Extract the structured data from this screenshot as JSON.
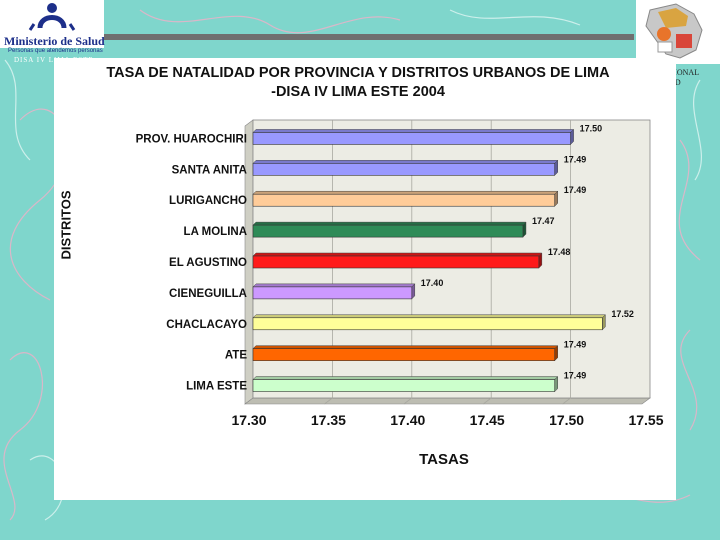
{
  "header": {
    "ministry": "Ministerio de Salud",
    "ministry_tagline": "Personas que atendemos personas",
    "disa": "DISA IV LIMA ESTE",
    "sala": "SALA SITUACIONAL DE SALUD"
  },
  "colors": {
    "background": "#7fd6cc",
    "plot_area": "#ecece4",
    "ministry_blue": "#1d2f8a"
  },
  "chart_data": {
    "type": "bar",
    "orientation": "horizontal",
    "title": "TASA DE NATALIDAD POR PROVINCIA Y DISTRITOS URBANOS DE LIMA -DISA IV LIMA ESTE 2004",
    "xlabel": "TASAS",
    "ylabel": "DISTRITOS",
    "xlim": [
      17.3,
      17.55
    ],
    "xticks": [
      "17.30",
      "17.35",
      "17.40",
      "17.45",
      "17.50",
      "17.55"
    ],
    "grid": true,
    "legend": "none",
    "categories": [
      "PROV. HUAROCHIRI",
      "SANTA ANITA",
      "LURIGANCHO",
      "LA MOLINA",
      "EL AGUSTINO",
      "CIENEGUILLA",
      "CHACLACAYO",
      "ATE",
      "LIMA ESTE"
    ],
    "values": [
      17.5,
      17.49,
      17.49,
      17.47,
      17.48,
      17.4,
      17.52,
      17.49,
      17.49
    ],
    "value_labels": [
      "17.50",
      "17.49",
      "17.49",
      "17.47",
      "17.48",
      "17.40",
      "17.52",
      "17.49",
      "17.49"
    ],
    "bar_colors": [
      "#9999ff",
      "#9999ff",
      "#ffcc99",
      "#2e8b57",
      "#ff1a1a",
      "#cc99ff",
      "#ffff99",
      "#ff6600",
      "#ccffcc"
    ]
  }
}
